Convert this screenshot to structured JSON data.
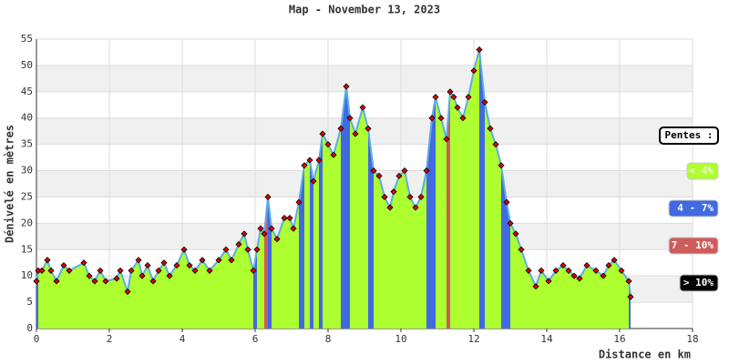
{
  "chart_data": {
    "type": "elevation",
    "title": "Map - November 13, 2023",
    "xlabel": "Distance en km",
    "ylabel": "Dénivelé en mètres",
    "legend_title": "Pentes :",
    "slope_classes": [
      {
        "label": "< 4%",
        "min": 0,
        "color": "#adff2f"
      },
      {
        "label": "4 - 7%",
        "min": 4,
        "color": "#4169e1"
      },
      {
        "label": "7 - 10%",
        "min": 7,
        "color": "#cd5c5c"
      },
      {
        "label": "> 10%",
        "min": 10,
        "color": "#000000"
      }
    ],
    "line_color": "#5dade2",
    "marker_color": "#e00000",
    "xlim": [
      0,
      18
    ],
    "xticks": [
      0,
      2,
      4,
      6,
      8,
      10,
      12,
      14,
      16,
      18
    ],
    "ylim": [
      0,
      55
    ],
    "yticks": [
      0,
      5,
      10,
      15,
      20,
      25,
      30,
      35,
      40,
      45,
      50,
      55
    ],
    "grid": true,
    "x": [
      0,
      0.05,
      0.15,
      0.3,
      0.4,
      0.55,
      0.75,
      0.9,
      1.3,
      1.45,
      1.6,
      1.75,
      1.9,
      2.2,
      2.3,
      2.5,
      2.6,
      2.8,
      2.9,
      3.05,
      3.2,
      3.35,
      3.5,
      3.65,
      3.85,
      4.05,
      4.2,
      4.35,
      4.55,
      4.75,
      5.0,
      5.2,
      5.35,
      5.55,
      5.7,
      5.8,
      5.95,
      6.05,
      6.15,
      6.25,
      6.35,
      6.45,
      6.6,
      6.8,
      6.95,
      7.05,
      7.2,
      7.35,
      7.5,
      7.6,
      7.75,
      7.85,
      8.0,
      8.15,
      8.35,
      8.5,
      8.6,
      8.75,
      8.95,
      9.1,
      9.25,
      9.4,
      9.55,
      9.7,
      9.8,
      9.95,
      10.1,
      10.25,
      10.4,
      10.55,
      10.7,
      10.85,
      10.95,
      11.1,
      11.25,
      11.35,
      11.45,
      11.55,
      11.7,
      11.85,
      12.0,
      12.15,
      12.3,
      12.45,
      12.6,
      12.75,
      12.9,
      13.0,
      13.15,
      13.3,
      13.5,
      13.7,
      13.85,
      14.05,
      14.25,
      14.45,
      14.6,
      14.75,
      14.9,
      15.1,
      15.35,
      15.55,
      15.7,
      15.85,
      16.05,
      16.25,
      16.3
    ],
    "values": [
      9,
      11,
      11,
      13,
      11,
      9,
      12,
      11,
      12.5,
      10,
      9,
      11,
      9,
      9.5,
      11,
      7,
      11,
      13,
      10,
      12,
      9,
      11,
      12.5,
      10,
      12,
      15,
      12,
      11,
      13,
      11,
      13,
      15,
      13,
      16,
      18,
      15,
      11,
      15,
      19,
      18,
      25,
      19,
      17,
      21,
      21,
      19,
      24,
      31,
      32,
      28,
      32,
      37,
      35,
      33,
      38,
      46,
      40,
      37,
      42,
      38,
      30,
      29,
      25,
      23,
      26,
      29,
      30,
      25,
      23,
      25,
      30,
      40,
      44,
      40,
      36,
      45,
      44,
      42,
      40,
      44,
      49,
      53,
      43,
      38,
      35,
      31,
      24,
      20,
      18,
      15,
      11,
      8,
      11,
      9,
      11,
      12,
      11,
      10,
      9.5,
      12,
      11,
      10,
      12,
      13,
      11,
      9,
      6
    ]
  }
}
